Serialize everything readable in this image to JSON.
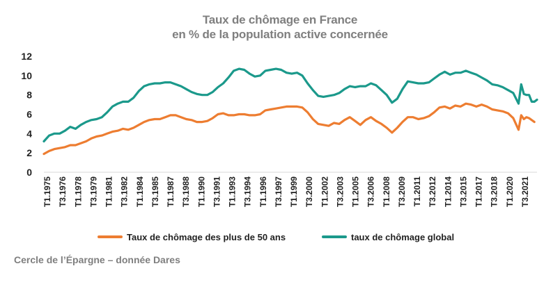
{
  "chart_data": {
    "type": "line",
    "title": "Taux de chômage en France",
    "subtitle": "en % de la population active concernée",
    "xlabel": "",
    "ylabel": "",
    "ylim": [
      0,
      12
    ],
    "yticks": [
      "0",
      "2",
      "4",
      "6",
      "8",
      "10",
      "12"
    ],
    "x_start": 1975.0,
    "x_end": 2021.75,
    "xtick_labels": [
      "T1.1975",
      "T3.1976",
      "T1.1978",
      "T3.1979",
      "T1.1981",
      "T3.1982",
      "T1.1984",
      "T3.1985",
      "T1.1987",
      "T3.1988",
      "T1.1990",
      "T3.1991",
      "T1.1993",
      "T3.1994",
      "T1.1996",
      "T3.1997",
      "T1.1999",
      "T3.2000",
      "T1.2002",
      "T3.2003",
      "T1.2005",
      "T3.2006",
      "T1.2008",
      "T3.2009",
      "T1.2011",
      "T3.2012",
      "T1.2014",
      "T3.2015",
      "T1.2017",
      "T3.2018",
      "T1.2020",
      "T3.2021"
    ],
    "legend_position": "bottom",
    "series": [
      {
        "name": "Taux de chômage des plus de 50 ans",
        "color": "#ED7D31",
        "points": [
          [
            1975.0,
            1.9
          ],
          [
            1975.5,
            2.2
          ],
          [
            1976.0,
            2.4
          ],
          [
            1976.5,
            2.5
          ],
          [
            1977.0,
            2.6
          ],
          [
            1977.5,
            2.8
          ],
          [
            1978.0,
            2.8
          ],
          [
            1978.5,
            3.0
          ],
          [
            1979.0,
            3.2
          ],
          [
            1979.5,
            3.5
          ],
          [
            1980.0,
            3.7
          ],
          [
            1980.5,
            3.8
          ],
          [
            1981.0,
            4.0
          ],
          [
            1981.5,
            4.2
          ],
          [
            1982.0,
            4.3
          ],
          [
            1982.5,
            4.5
          ],
          [
            1983.0,
            4.4
          ],
          [
            1983.5,
            4.6
          ],
          [
            1984.0,
            4.9
          ],
          [
            1984.5,
            5.2
          ],
          [
            1985.0,
            5.4
          ],
          [
            1985.5,
            5.5
          ],
          [
            1986.0,
            5.5
          ],
          [
            1986.5,
            5.7
          ],
          [
            1987.0,
            5.9
          ],
          [
            1987.5,
            5.9
          ],
          [
            1988.0,
            5.7
          ],
          [
            1988.5,
            5.5
          ],
          [
            1989.0,
            5.4
          ],
          [
            1989.5,
            5.2
          ],
          [
            1990.0,
            5.2
          ],
          [
            1990.5,
            5.3
          ],
          [
            1991.0,
            5.6
          ],
          [
            1991.5,
            6.0
          ],
          [
            1992.0,
            6.1
          ],
          [
            1992.5,
            5.9
          ],
          [
            1993.0,
            5.9
          ],
          [
            1993.5,
            6.0
          ],
          [
            1994.0,
            6.0
          ],
          [
            1994.5,
            5.9
          ],
          [
            1995.0,
            5.9
          ],
          [
            1995.5,
            6.0
          ],
          [
            1996.0,
            6.4
          ],
          [
            1996.5,
            6.5
          ],
          [
            1997.0,
            6.6
          ],
          [
            1997.5,
            6.7
          ],
          [
            1998.0,
            6.8
          ],
          [
            1998.5,
            6.8
          ],
          [
            1999.0,
            6.8
          ],
          [
            1999.5,
            6.7
          ],
          [
            2000.0,
            6.2
          ],
          [
            2000.5,
            5.5
          ],
          [
            2001.0,
            5.0
          ],
          [
            2001.5,
            4.9
          ],
          [
            2002.0,
            4.8
          ],
          [
            2002.5,
            5.1
          ],
          [
            2003.0,
            5.0
          ],
          [
            2003.5,
            5.4
          ],
          [
            2004.0,
            5.7
          ],
          [
            2004.5,
            5.3
          ],
          [
            2005.0,
            4.9
          ],
          [
            2005.5,
            5.4
          ],
          [
            2006.0,
            5.7
          ],
          [
            2006.5,
            5.3
          ],
          [
            2007.0,
            5.0
          ],
          [
            2007.5,
            4.6
          ],
          [
            2008.0,
            4.1
          ],
          [
            2008.5,
            4.6
          ],
          [
            2009.0,
            5.2
          ],
          [
            2009.5,
            5.7
          ],
          [
            2010.0,
            5.7
          ],
          [
            2010.5,
            5.5
          ],
          [
            2011.0,
            5.6
          ],
          [
            2011.5,
            5.8
          ],
          [
            2012.0,
            6.2
          ],
          [
            2012.5,
            6.7
          ],
          [
            2013.0,
            6.8
          ],
          [
            2013.5,
            6.6
          ],
          [
            2014.0,
            6.9
          ],
          [
            2014.5,
            6.8
          ],
          [
            2015.0,
            7.1
          ],
          [
            2015.5,
            7.0
          ],
          [
            2016.0,
            6.8
          ],
          [
            2016.5,
            7.0
          ],
          [
            2017.0,
            6.8
          ],
          [
            2017.5,
            6.5
          ],
          [
            2018.0,
            6.4
          ],
          [
            2018.5,
            6.3
          ],
          [
            2019.0,
            6.1
          ],
          [
            2019.5,
            5.6
          ],
          [
            2020.0,
            4.4
          ],
          [
            2020.25,
            5.9
          ],
          [
            2020.5,
            5.5
          ],
          [
            2020.75,
            5.7
          ],
          [
            2021.0,
            5.6
          ],
          [
            2021.5,
            5.2
          ]
        ]
      },
      {
        "name": "taux de chômage global",
        "color": "#1B998B",
        "points": [
          [
            1975.0,
            3.2
          ],
          [
            1975.5,
            3.8
          ],
          [
            1976.0,
            4.0
          ],
          [
            1976.5,
            4.0
          ],
          [
            1977.0,
            4.3
          ],
          [
            1977.5,
            4.7
          ],
          [
            1978.0,
            4.5
          ],
          [
            1978.5,
            4.9
          ],
          [
            1979.0,
            5.2
          ],
          [
            1979.5,
            5.4
          ],
          [
            1980.0,
            5.5
          ],
          [
            1980.5,
            5.7
          ],
          [
            1981.0,
            6.2
          ],
          [
            1981.5,
            6.8
          ],
          [
            1982.0,
            7.1
          ],
          [
            1982.5,
            7.3
          ],
          [
            1983.0,
            7.3
          ],
          [
            1983.5,
            7.7
          ],
          [
            1984.0,
            8.4
          ],
          [
            1984.5,
            8.9
          ],
          [
            1985.0,
            9.1
          ],
          [
            1985.5,
            9.2
          ],
          [
            1986.0,
            9.2
          ],
          [
            1986.5,
            9.3
          ],
          [
            1987.0,
            9.3
          ],
          [
            1987.5,
            9.1
          ],
          [
            1988.0,
            8.9
          ],
          [
            1988.5,
            8.6
          ],
          [
            1989.0,
            8.3
          ],
          [
            1989.5,
            8.1
          ],
          [
            1990.0,
            8.0
          ],
          [
            1990.5,
            8.0
          ],
          [
            1991.0,
            8.3
          ],
          [
            1991.5,
            8.8
          ],
          [
            1992.0,
            9.2
          ],
          [
            1992.5,
            9.8
          ],
          [
            1993.0,
            10.5
          ],
          [
            1993.5,
            10.7
          ],
          [
            1994.0,
            10.6
          ],
          [
            1994.5,
            10.2
          ],
          [
            1995.0,
            9.9
          ],
          [
            1995.5,
            10.0
          ],
          [
            1996.0,
            10.5
          ],
          [
            1996.5,
            10.6
          ],
          [
            1997.0,
            10.7
          ],
          [
            1997.5,
            10.6
          ],
          [
            1998.0,
            10.3
          ],
          [
            1998.5,
            10.2
          ],
          [
            1999.0,
            10.3
          ],
          [
            1999.5,
            10.0
          ],
          [
            2000.0,
            9.2
          ],
          [
            2000.5,
            8.5
          ],
          [
            2001.0,
            7.9
          ],
          [
            2001.5,
            7.8
          ],
          [
            2002.0,
            7.9
          ],
          [
            2002.5,
            8.0
          ],
          [
            2003.0,
            8.2
          ],
          [
            2003.5,
            8.6
          ],
          [
            2004.0,
            8.9
          ],
          [
            2004.5,
            8.8
          ],
          [
            2005.0,
            8.9
          ],
          [
            2005.5,
            8.9
          ],
          [
            2006.0,
            9.2
          ],
          [
            2006.5,
            9.0
          ],
          [
            2007.0,
            8.5
          ],
          [
            2007.5,
            8.0
          ],
          [
            2008.0,
            7.2
          ],
          [
            2008.5,
            7.6
          ],
          [
            2009.0,
            8.6
          ],
          [
            2009.5,
            9.4
          ],
          [
            2010.0,
            9.3
          ],
          [
            2010.5,
            9.2
          ],
          [
            2011.0,
            9.2
          ],
          [
            2011.5,
            9.3
          ],
          [
            2012.0,
            9.7
          ],
          [
            2012.5,
            10.1
          ],
          [
            2013.0,
            10.4
          ],
          [
            2013.5,
            10.1
          ],
          [
            2014.0,
            10.3
          ],
          [
            2014.5,
            10.3
          ],
          [
            2015.0,
            10.5
          ],
          [
            2015.5,
            10.3
          ],
          [
            2016.0,
            10.1
          ],
          [
            2016.5,
            9.8
          ],
          [
            2017.0,
            9.5
          ],
          [
            2017.5,
            9.1
          ],
          [
            2018.0,
            9.0
          ],
          [
            2018.5,
            8.8
          ],
          [
            2019.0,
            8.5
          ],
          [
            2019.5,
            8.2
          ],
          [
            2020.0,
            7.1
          ],
          [
            2020.25,
            9.1
          ],
          [
            2020.5,
            8.1
          ],
          [
            2020.75,
            8.0
          ],
          [
            2021.0,
            8.0
          ],
          [
            2021.25,
            7.3
          ],
          [
            2021.5,
            7.3
          ],
          [
            2021.75,
            7.5
          ]
        ]
      }
    ]
  },
  "source": "Cercle de l’Épargne – donnée Dares"
}
